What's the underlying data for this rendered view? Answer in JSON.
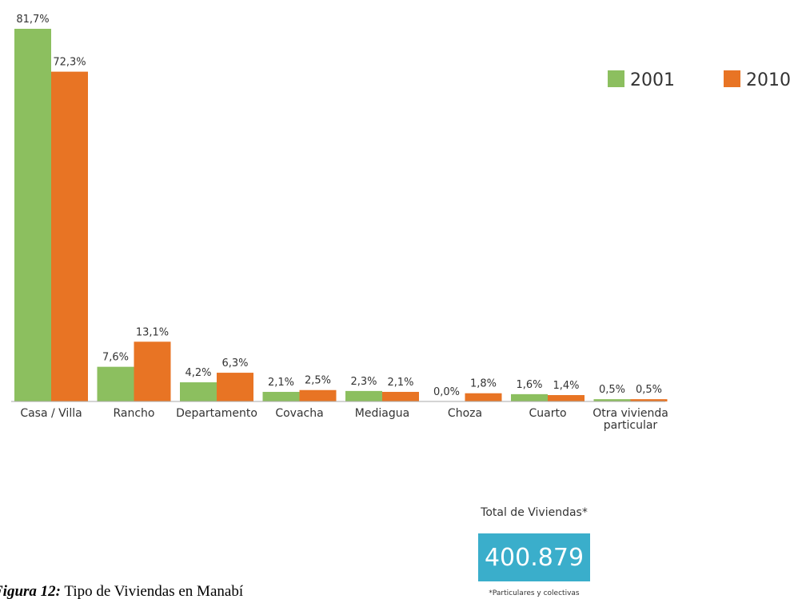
{
  "chart_data": {
    "type": "bar",
    "categories": [
      "Casa / Villa",
      "Rancho",
      "Departamento",
      "Covacha",
      "Mediagua",
      "Choza",
      "Cuarto",
      "Otra vivienda particular"
    ],
    "series": [
      {
        "name": "2001",
        "color": "#8cbf5f",
        "values": [
          81.7,
          7.6,
          4.2,
          2.1,
          2.3,
          0.0,
          1.6,
          0.5
        ],
        "value_labels": [
          "81,7%",
          "7,6%",
          "4,2%",
          "2,1%",
          "2,3%",
          "0,0%",
          "1,6%",
          "0,5%"
        ]
      },
      {
        "name": "2010",
        "color": "#e87424",
        "values": [
          72.3,
          13.1,
          6.3,
          2.5,
          2.1,
          1.8,
          1.4,
          0.5
        ],
        "value_labels": [
          "72,3%",
          "13,1%",
          "6,3%",
          "2,5%",
          "2,1%",
          "1,8%",
          "1,4%",
          "0,5%"
        ]
      }
    ],
    "legend": "top-right"
  },
  "total": {
    "title": "Total de Viviendas*",
    "value": "400.879",
    "note": "*Particulares y colectivas"
  },
  "caption": {
    "label": "Figura 12:",
    "text": "Tipo de Viviendas en Manabí"
  }
}
